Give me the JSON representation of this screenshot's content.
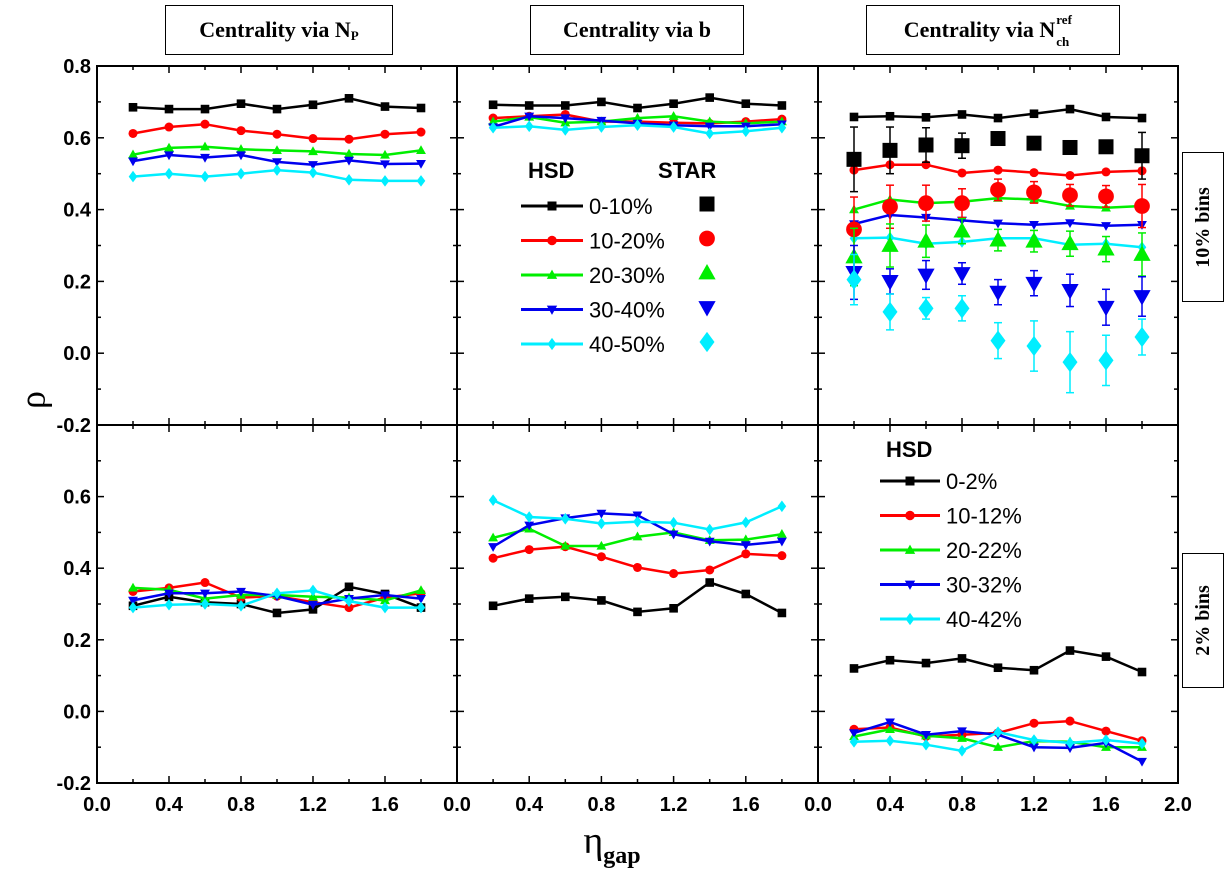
{
  "panel_titles": {
    "left": "Centrality via N",
    "left_sub": "P",
    "middle": "Centrality via b",
    "right": "Centrality via N",
    "right_sup": "ref",
    "right_sub": "ch"
  },
  "row_labels": {
    "top": "10% bins",
    "bottom": "2% bins"
  },
  "axis_labels": {
    "y": "ρ",
    "x_main": "η",
    "x_sub": "gap"
  },
  "legend_top": {
    "hsd_header": "HSD",
    "star_header": "STAR",
    "entries": [
      "0-10%",
      "10-20%",
      "20-30%",
      "30-40%",
      "40-50%"
    ]
  },
  "legend_bottom": {
    "header": "HSD",
    "entries": [
      "0-2%",
      "10-12%",
      "20-22%",
      "30-32%",
      "40-42%"
    ]
  },
  "colors": [
    "#000000",
    "#ff0000",
    "#00ee00",
    "#0000ee",
    "#00eeff"
  ],
  "chart_data": [
    {
      "type": "line",
      "panel": "top-left",
      "xlim": [
        0.0,
        2.0
      ],
      "ylim": [
        -0.2,
        0.8
      ],
      "x": [
        0.2,
        0.4,
        0.6,
        0.8,
        1.0,
        1.2,
        1.4,
        1.6,
        1.8
      ],
      "series": [
        {
          "name": "0-10%",
          "values": [
            0.685,
            0.68,
            0.68,
            0.695,
            0.68,
            0.692,
            0.71,
            0.687,
            0.683
          ]
        },
        {
          "name": "10-20%",
          "values": [
            0.612,
            0.63,
            0.638,
            0.62,
            0.61,
            0.598,
            0.596,
            0.61,
            0.616
          ]
        },
        {
          "name": "20-30%",
          "values": [
            0.553,
            0.572,
            0.575,
            0.568,
            0.565,
            0.562,
            0.555,
            0.552,
            0.565
          ]
        },
        {
          "name": "30-40%",
          "values": [
            0.535,
            0.552,
            0.545,
            0.552,
            0.533,
            0.525,
            0.537,
            0.527,
            0.528
          ]
        },
        {
          "name": "40-50%",
          "values": [
            0.492,
            0.5,
            0.492,
            0.5,
            0.51,
            0.503,
            0.483,
            0.48,
            0.48
          ]
        }
      ]
    },
    {
      "type": "line",
      "panel": "top-middle",
      "xlim": [
        0.0,
        2.0
      ],
      "ylim": [
        -0.2,
        0.8
      ],
      "x": [
        0.2,
        0.4,
        0.6,
        0.8,
        1.0,
        1.2,
        1.4,
        1.6,
        1.8
      ],
      "series": [
        {
          "name": "0-10%",
          "values": [
            0.692,
            0.69,
            0.69,
            0.7,
            0.683,
            0.695,
            0.712,
            0.695,
            0.69
          ]
        },
        {
          "name": "10-20%",
          "values": [
            0.655,
            0.66,
            0.665,
            0.645,
            0.645,
            0.642,
            0.64,
            0.645,
            0.652
          ]
        },
        {
          "name": "20-30%",
          "values": [
            0.645,
            0.658,
            0.642,
            0.645,
            0.655,
            0.66,
            0.645,
            0.64,
            0.645
          ]
        },
        {
          "name": "30-40%",
          "values": [
            0.63,
            0.66,
            0.655,
            0.648,
            0.64,
            0.635,
            0.632,
            0.632,
            0.638
          ]
        },
        {
          "name": "40-50%",
          "values": [
            0.628,
            0.632,
            0.622,
            0.63,
            0.635,
            0.63,
            0.612,
            0.618,
            0.628
          ]
        }
      ]
    },
    {
      "type": "line",
      "panel": "top-right",
      "xlim": [
        0.0,
        2.0
      ],
      "ylim": [
        -0.2,
        0.8
      ],
      "x": [
        0.2,
        0.4,
        0.6,
        0.8,
        1.0,
        1.2,
        1.4,
        1.6,
        1.8
      ],
      "series": [
        {
          "name": "0-10%",
          "values": [
            0.658,
            0.66,
            0.657,
            0.665,
            0.655,
            0.667,
            0.68,
            0.658,
            0.655
          ]
        },
        {
          "name": "10-20%",
          "values": [
            0.51,
            0.525,
            0.525,
            0.502,
            0.51,
            0.503,
            0.495,
            0.505,
            0.508
          ]
        },
        {
          "name": "20-30%",
          "values": [
            0.4,
            0.428,
            0.418,
            0.422,
            0.432,
            0.428,
            0.41,
            0.405,
            0.41
          ]
        },
        {
          "name": "30-40%",
          "values": [
            0.36,
            0.385,
            0.378,
            0.37,
            0.362,
            0.358,
            0.363,
            0.355,
            0.358
          ]
        },
        {
          "name": "40-50%",
          "values": [
            0.32,
            0.322,
            0.305,
            0.31,
            0.32,
            0.32,
            0.302,
            0.305,
            0.295
          ]
        }
      ],
      "star": [
        {
          "name": "0-10%",
          "values": [
            0.54,
            0.565,
            0.58,
            0.578,
            0.598,
            0.585,
            0.573,
            0.575,
            0.55
          ],
          "errors": [
            0.09,
            0.065,
            0.048,
            0.035,
            0.0,
            0.0,
            0.0,
            0.0,
            0.065
          ]
        },
        {
          "name": "10-20%",
          "values": [
            0.345,
            0.408,
            0.418,
            0.418,
            0.455,
            0.448,
            0.44,
            0.437,
            0.41
          ],
          "errors": [
            0.09,
            0.06,
            0.05,
            0.04,
            0.03,
            0.03,
            0.03,
            0.03,
            0.06
          ]
        },
        {
          "name": "20-30%",
          "values": [
            0.268,
            0.3,
            0.312,
            0.34,
            0.315,
            0.312,
            0.305,
            0.29,
            0.275
          ],
          "errors": [
            0.08,
            0.06,
            0.045,
            0.035,
            0.03,
            0.03,
            0.035,
            0.035,
            0.06
          ]
        },
        {
          "name": "30-40%",
          "values": [
            0.225,
            0.2,
            0.218,
            0.222,
            0.17,
            0.195,
            0.175,
            0.128,
            0.158
          ],
          "errors": [
            0.075,
            0.035,
            0.04,
            0.03,
            0.035,
            0.035,
            0.045,
            0.05,
            0.055
          ]
        },
        {
          "name": "40-50%",
          "values": [
            0.205,
            0.115,
            0.125,
            0.125,
            0.035,
            0.02,
            -0.025,
            -0.02,
            0.045
          ],
          "errors": [
            0.07,
            0.05,
            0.03,
            0.035,
            0.05,
            0.07,
            0.085,
            0.07,
            0.05
          ]
        }
      ]
    },
    {
      "type": "line",
      "panel": "bottom-left",
      "xlim": [
        0.0,
        2.0
      ],
      "ylim": [
        -0.2,
        0.8
      ],
      "x": [
        0.2,
        0.4,
        0.6,
        0.8,
        1.0,
        1.2,
        1.4,
        1.6,
        1.8
      ],
      "series": [
        {
          "name": "0-2%",
          "values": [
            0.295,
            0.32,
            0.305,
            0.3,
            0.275,
            0.285,
            0.348,
            0.328,
            0.29
          ]
        },
        {
          "name": "10-12%",
          "values": [
            0.335,
            0.345,
            0.36,
            0.318,
            0.322,
            0.305,
            0.29,
            0.318,
            0.33
          ]
        },
        {
          "name": "20-22%",
          "values": [
            0.345,
            0.34,
            0.315,
            0.325,
            0.325,
            0.32,
            0.318,
            0.31,
            0.338
          ]
        },
        {
          "name": "30-32%",
          "values": [
            0.31,
            0.33,
            0.33,
            0.335,
            0.322,
            0.298,
            0.315,
            0.325,
            0.315
          ]
        },
        {
          "name": "40-42%",
          "values": [
            0.29,
            0.298,
            0.3,
            0.295,
            0.33,
            0.338,
            0.308,
            0.29,
            0.29
          ]
        }
      ]
    },
    {
      "type": "line",
      "panel": "bottom-middle",
      "xlim": [
        0.0,
        2.0
      ],
      "ylim": [
        -0.2,
        0.8
      ],
      "x": [
        0.2,
        0.4,
        0.6,
        0.8,
        1.0,
        1.2,
        1.4,
        1.6,
        1.8
      ],
      "series": [
        {
          "name": "0-2%",
          "values": [
            0.295,
            0.315,
            0.32,
            0.31,
            0.278,
            0.288,
            0.36,
            0.328,
            0.275
          ]
        },
        {
          "name": "10-12%",
          "values": [
            0.428,
            0.452,
            0.46,
            0.432,
            0.402,
            0.385,
            0.395,
            0.44,
            0.435
          ]
        },
        {
          "name": "20-22%",
          "values": [
            0.485,
            0.51,
            0.462,
            0.462,
            0.488,
            0.5,
            0.478,
            0.48,
            0.495
          ]
        },
        {
          "name": "30-32%",
          "values": [
            0.46,
            0.52,
            0.54,
            0.553,
            0.548,
            0.495,
            0.475,
            0.465,
            0.475
          ]
        },
        {
          "name": "40-42%",
          "values": [
            0.59,
            0.543,
            0.538,
            0.525,
            0.53,
            0.527,
            0.508,
            0.528,
            0.573
          ]
        }
      ]
    },
    {
      "type": "line",
      "panel": "bottom-right",
      "xlim": [
        0.0,
        2.0
      ],
      "ylim": [
        -0.2,
        0.8
      ],
      "x": [
        0.2,
        0.4,
        0.6,
        0.8,
        1.0,
        1.2,
        1.4,
        1.6,
        1.8
      ],
      "series": [
        {
          "name": "0-2%",
          "values": [
            0.12,
            0.143,
            0.135,
            0.148,
            0.122,
            0.115,
            0.17,
            0.153,
            0.11
          ]
        },
        {
          "name": "10-12%",
          "values": [
            -0.05,
            -0.045,
            -0.07,
            -0.065,
            -0.06,
            -0.033,
            -0.027,
            -0.055,
            -0.082
          ]
        },
        {
          "name": "20-22%",
          "values": [
            -0.07,
            -0.05,
            -0.068,
            -0.075,
            -0.1,
            -0.083,
            -0.085,
            -0.1,
            -0.1
          ]
        },
        {
          "name": "30-32%",
          "values": [
            -0.06,
            -0.03,
            -0.065,
            -0.055,
            -0.065,
            -0.1,
            -0.102,
            -0.088,
            -0.14
          ]
        },
        {
          "name": "40-42%",
          "values": [
            -0.085,
            -0.082,
            -0.093,
            -0.11,
            -0.058,
            -0.08,
            -0.088,
            -0.08,
            -0.09
          ]
        }
      ]
    }
  ]
}
